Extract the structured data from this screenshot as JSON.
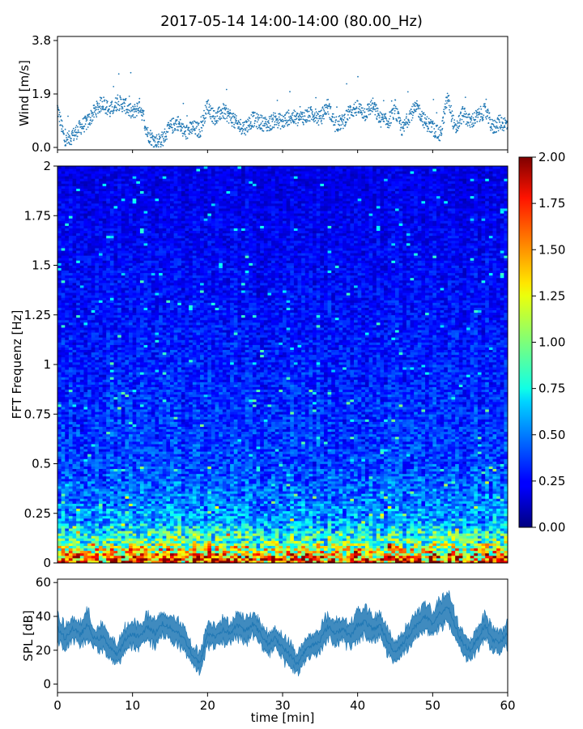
{
  "title": "2017-05-14 14:00-14:00 (80.00_Hz)",
  "chart_data": [
    {
      "type": "scatter",
      "name_panel": "wind",
      "ylabel": "Wind [m/s]",
      "xlim": [
        0,
        60
      ],
      "ylim": [
        0,
        3.8
      ],
      "yticks": [
        0.0,
        1.9,
        3.8
      ],
      "ytick_labels": [
        "0.0",
        "1.9",
        "3.8"
      ],
      "color": "#1f77b4",
      "x": [
        0,
        1,
        2,
        3,
        4,
        5,
        6,
        7,
        8,
        9,
        10,
        11,
        12,
        13,
        14,
        15,
        16,
        17,
        18,
        19,
        20,
        21,
        22,
        23,
        24,
        25,
        26,
        27,
        28,
        29,
        30,
        31,
        32,
        33,
        34,
        35,
        36,
        37,
        38,
        39,
        40,
        41,
        42,
        43,
        44,
        45,
        46,
        47,
        48,
        49,
        50,
        51,
        52,
        53,
        54,
        55,
        56,
        57,
        58,
        59,
        60
      ],
      "y": [
        1.4,
        0.2,
        0.4,
        0.7,
        0.9,
        1.3,
        1.6,
        1.3,
        1.6,
        1.5,
        1.2,
        1.5,
        0.5,
        0.2,
        0.3,
        0.7,
        0.9,
        0.5,
        0.7,
        0.6,
        1.5,
        1.0,
        1.3,
        1.1,
        0.8,
        0.7,
        1.0,
        0.9,
        0.8,
        1.0,
        0.9,
        1.1,
        1.0,
        1.1,
        1.2,
        1.0,
        1.5,
        0.8,
        0.9,
        1.3,
        1.4,
        1.2,
        1.5,
        1.0,
        0.9,
        1.3,
        0.6,
        1.2,
        1.4,
        0.9,
        0.7,
        0.4,
        1.8,
        0.6,
        1.2,
        0.9,
        1.1,
        1.3,
        0.7,
        0.9,
        0.8
      ]
    },
    {
      "type": "heatmap",
      "ylabel": "FFT Frequenz [Hz]",
      "xlim": [
        0,
        60
      ],
      "ylim": [
        0,
        2
      ],
      "yticks": [
        0,
        0.25,
        0.5,
        0.75,
        1,
        1.25,
        1.5,
        1.75,
        2
      ],
      "ytick_labels": [
        "0",
        "0.25",
        "0.5",
        "0.75",
        "1",
        "1.25",
        "1.5",
        "1.75",
        "2"
      ],
      "colormap": "jet",
      "colorbar": {
        "range": [
          0,
          2
        ],
        "ticks": [
          "0.00",
          "0.25",
          "0.50",
          "0.75",
          "1.00",
          "1.25",
          "1.50",
          "1.75",
          "2.00"
        ],
        "placement": "right"
      },
      "profile_freq_hz": [
        0.0,
        0.02,
        0.05,
        0.1,
        0.15,
        0.2,
        0.3,
        0.5,
        1.0,
        1.5,
        2.0
      ],
      "profile_mean_value": [
        1.8,
        1.6,
        1.3,
        0.95,
        0.8,
        0.6,
        0.5,
        0.38,
        0.3,
        0.25,
        0.2
      ]
    },
    {
      "type": "area",
      "ylabel": "SPL [dB]",
      "xlabel": "time [min]",
      "xlim": [
        0,
        60
      ],
      "ylim": [
        -5,
        62
      ],
      "xticks": [
        0,
        10,
        20,
        30,
        40,
        50,
        60
      ],
      "xtick_labels": [
        "0",
        "10",
        "20",
        "30",
        "40",
        "50",
        "60"
      ],
      "yticks": [
        0,
        20,
        40,
        60
      ],
      "ytick_labels": [
        "0",
        "20",
        "40",
        "60"
      ],
      "color": "#1f77b4",
      "x": [
        0,
        1,
        2,
        3,
        4,
        5,
        6,
        7,
        8,
        9,
        10,
        11,
        12,
        13,
        14,
        15,
        16,
        17,
        18,
        19,
        20,
        21,
        22,
        23,
        24,
        25,
        26,
        27,
        28,
        29,
        30,
        31,
        32,
        33,
        34,
        35,
        36,
        37,
        38,
        39,
        40,
        41,
        42,
        43,
        44,
        45,
        46,
        47,
        48,
        49,
        50,
        51,
        52,
        53,
        54,
        55,
        56,
        57,
        58,
        59,
        60
      ],
      "y": [
        33,
        27,
        33,
        29,
        35,
        26,
        28,
        22,
        17,
        26,
        30,
        28,
        34,
        30,
        36,
        33,
        31,
        26,
        17,
        12,
        30,
        28,
        32,
        30,
        35,
        31,
        36,
        30,
        24,
        27,
        22,
        17,
        12,
        20,
        23,
        26,
        34,
        30,
        33,
        28,
        35,
        37,
        32,
        35,
        25,
        19,
        24,
        30,
        36,
        40,
        35,
        42,
        46,
        34,
        24,
        20,
        27,
        35,
        26,
        25,
        30
      ],
      "band": [
        7,
        7,
        6,
        7,
        8,
        6,
        7,
        6,
        6,
        7,
        7,
        7,
        7,
        7,
        6,
        7,
        7,
        6,
        6,
        6,
        7,
        7,
        7,
        6,
        7,
        7,
        7,
        6,
        6,
        6,
        7,
        7,
        6,
        6,
        6,
        7,
        7,
        7,
        7,
        7,
        8,
        8,
        7,
        7,
        7,
        6,
        6,
        7,
        7,
        8,
        7,
        8,
        8,
        7,
        6,
        6,
        7,
        7,
        7,
        6,
        7
      ]
    }
  ]
}
